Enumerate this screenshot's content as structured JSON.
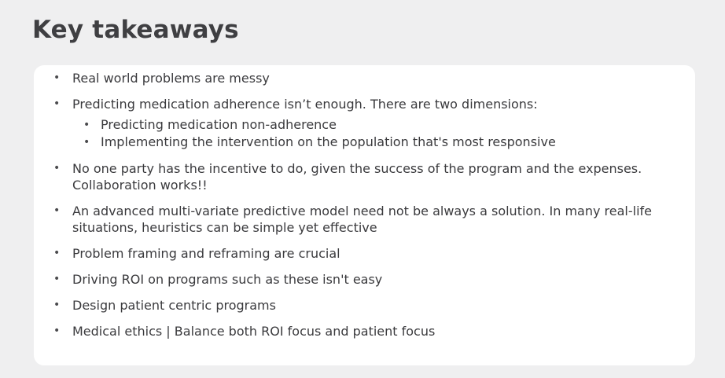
{
  "title": "Key takeaways",
  "points": [
    {
      "text": "Real world problems are messy"
    },
    {
      "text": "Predicting medication adherence isn’t enough. There are two dimensions:",
      "subpoints": [
        "Predicting medication non-adherence",
        "Implementing the intervention on the population that's most responsive"
      ]
    },
    {
      "text": "No one party has the incentive to do, given the success of the program and the expenses. Collaboration works!!"
    },
    {
      "text": "An advanced multi-variate predictive model need not be always a solution. In many real-life situations, heuristics can be simple yet effective"
    },
    {
      "text": "Problem framing and reframing are crucial"
    },
    {
      "text": "Driving ROI on programs such as these isn't easy"
    },
    {
      "text": "Design patient centric programs"
    },
    {
      "text": "Medical ethics | Balance both ROI focus and patient focus"
    }
  ],
  "colors": {
    "background": "#efeff0",
    "card": "#ffffff",
    "title": "#3f3f42",
    "text": "#3a3a3d"
  }
}
